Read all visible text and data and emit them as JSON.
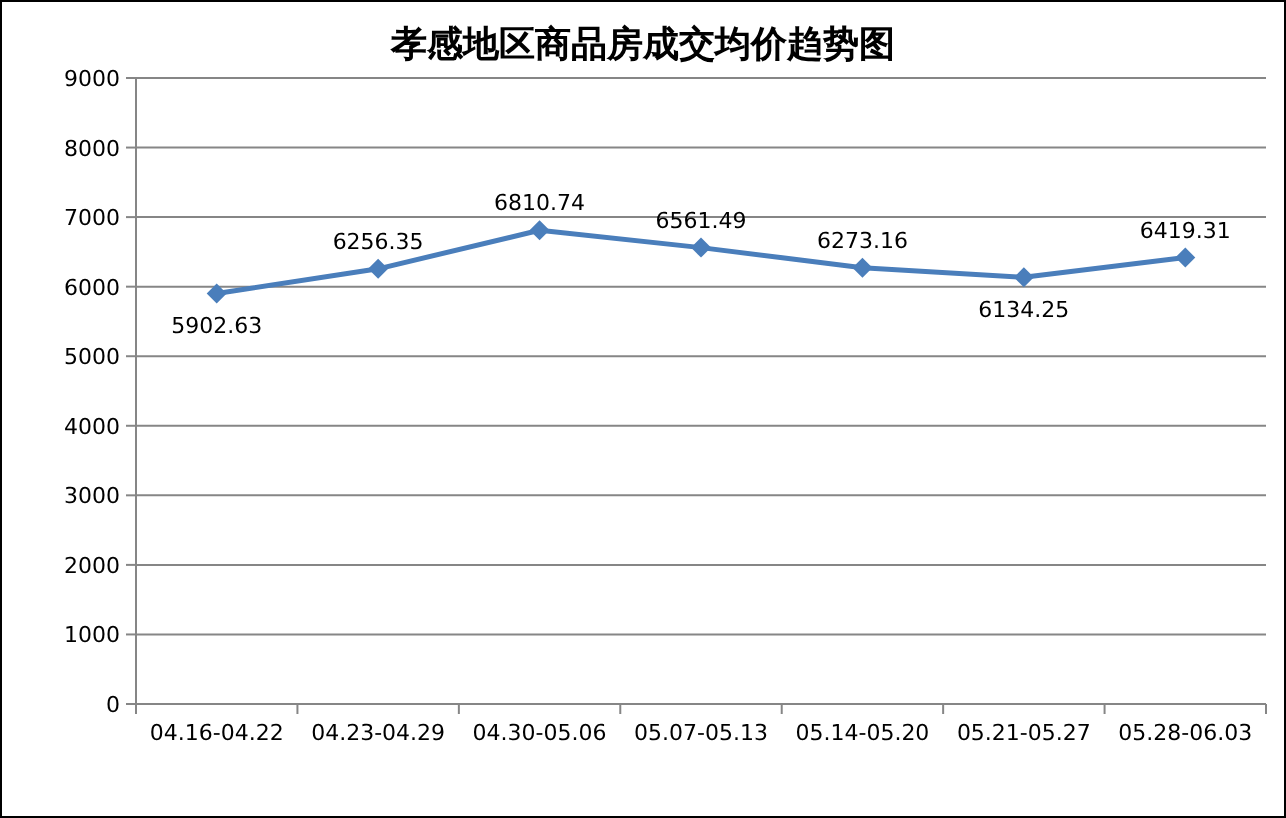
{
  "chart_data": {
    "type": "line",
    "title": "孝感地区商品房成交均价趋势图",
    "categories": [
      "04.16-04.22",
      "04.23-04.29",
      "04.30-05.06",
      "05.07-05.13",
      "05.14-05.20",
      "05.21-05.27",
      "05.28-06.03"
    ],
    "series": [
      {
        "color": "#4a7ebb",
        "values": [
          5902.63,
          6256.35,
          6810.74,
          6561.49,
          6273.16,
          6134.25,
          6419.31
        ]
      }
    ],
    "ylim": [
      0,
      9000
    ],
    "yticks": [
      0,
      1000,
      2000,
      3000,
      4000,
      5000,
      6000,
      7000,
      8000,
      9000
    ],
    "grid": "y",
    "marker": "diamond",
    "line_style": "solid",
    "data_labels": true
  }
}
